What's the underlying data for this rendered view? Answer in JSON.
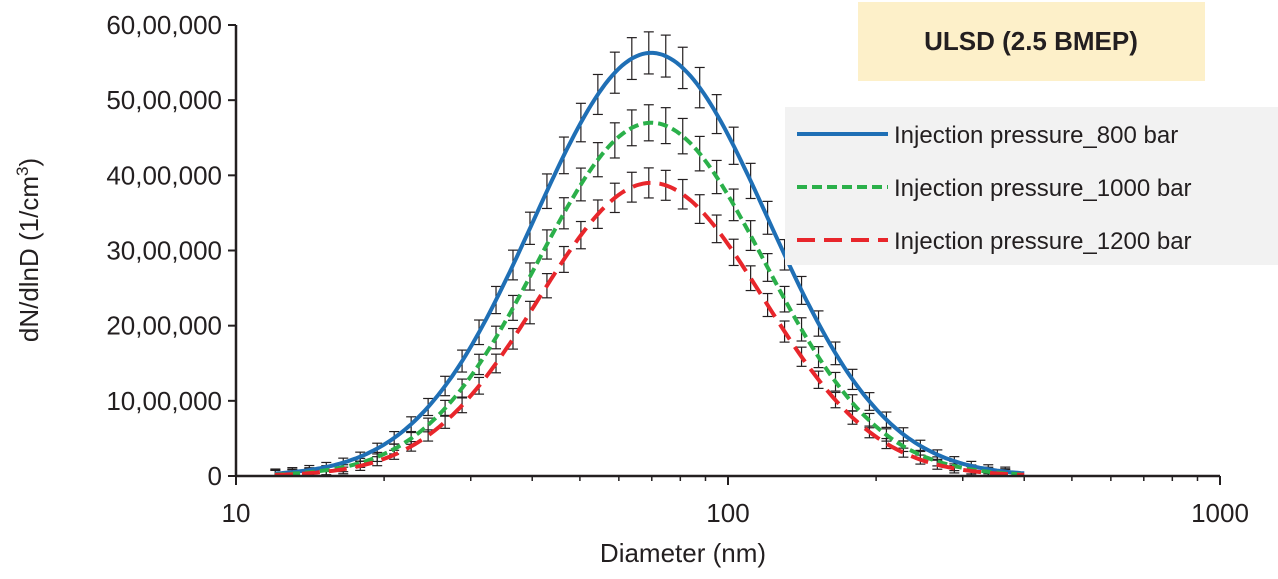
{
  "chart_data": {
    "type": "line",
    "title": "ULSD (2.5 BMEP)",
    "xlabel": "Diameter (nm)",
    "ylabel_main": "dN/dlnD (1/cm",
    "ylabel_sup": "3",
    "ylabel_close": ")",
    "xscale": "log",
    "xlim": [
      10,
      1000
    ],
    "ylim": [
      0,
      6000000
    ],
    "x_ticks": [
      10,
      100,
      1000
    ],
    "x_tick_labels": [
      "10",
      "100",
      "1000"
    ],
    "y_ticks": [
      0,
      1000000,
      2000000,
      3000000,
      4000000,
      5000000,
      6000000
    ],
    "y_tick_labels": [
      "0",
      "10,00,000",
      "20,00,000",
      "30,00,000",
      "40,00,000",
      "50,00,000",
      "60,00,000"
    ],
    "legend_position": "right",
    "error_bars": true,
    "series": [
      {
        "name": "Injection pressure_800 bar",
        "color": "#1f6fb5",
        "style": "solid",
        "peak_diameter": 69.8,
        "peak_value": 5630000,
        "geometric_std": 1.73,
        "error": 280000
      },
      {
        "name": "Injection pressure_1000 bar",
        "color": "#2bb04a",
        "style": "dotted",
        "peak_diameter": 69.8,
        "peak_value": 4700000,
        "geometric_std": 1.7,
        "error": 240000
      },
      {
        "name": "Injection pressure_1200 bar",
        "color": "#e8262b",
        "style": "dashed",
        "peak_diameter": 69.8,
        "peak_value": 3900000,
        "geometric_std": 1.69,
        "error": 200000
      }
    ]
  }
}
